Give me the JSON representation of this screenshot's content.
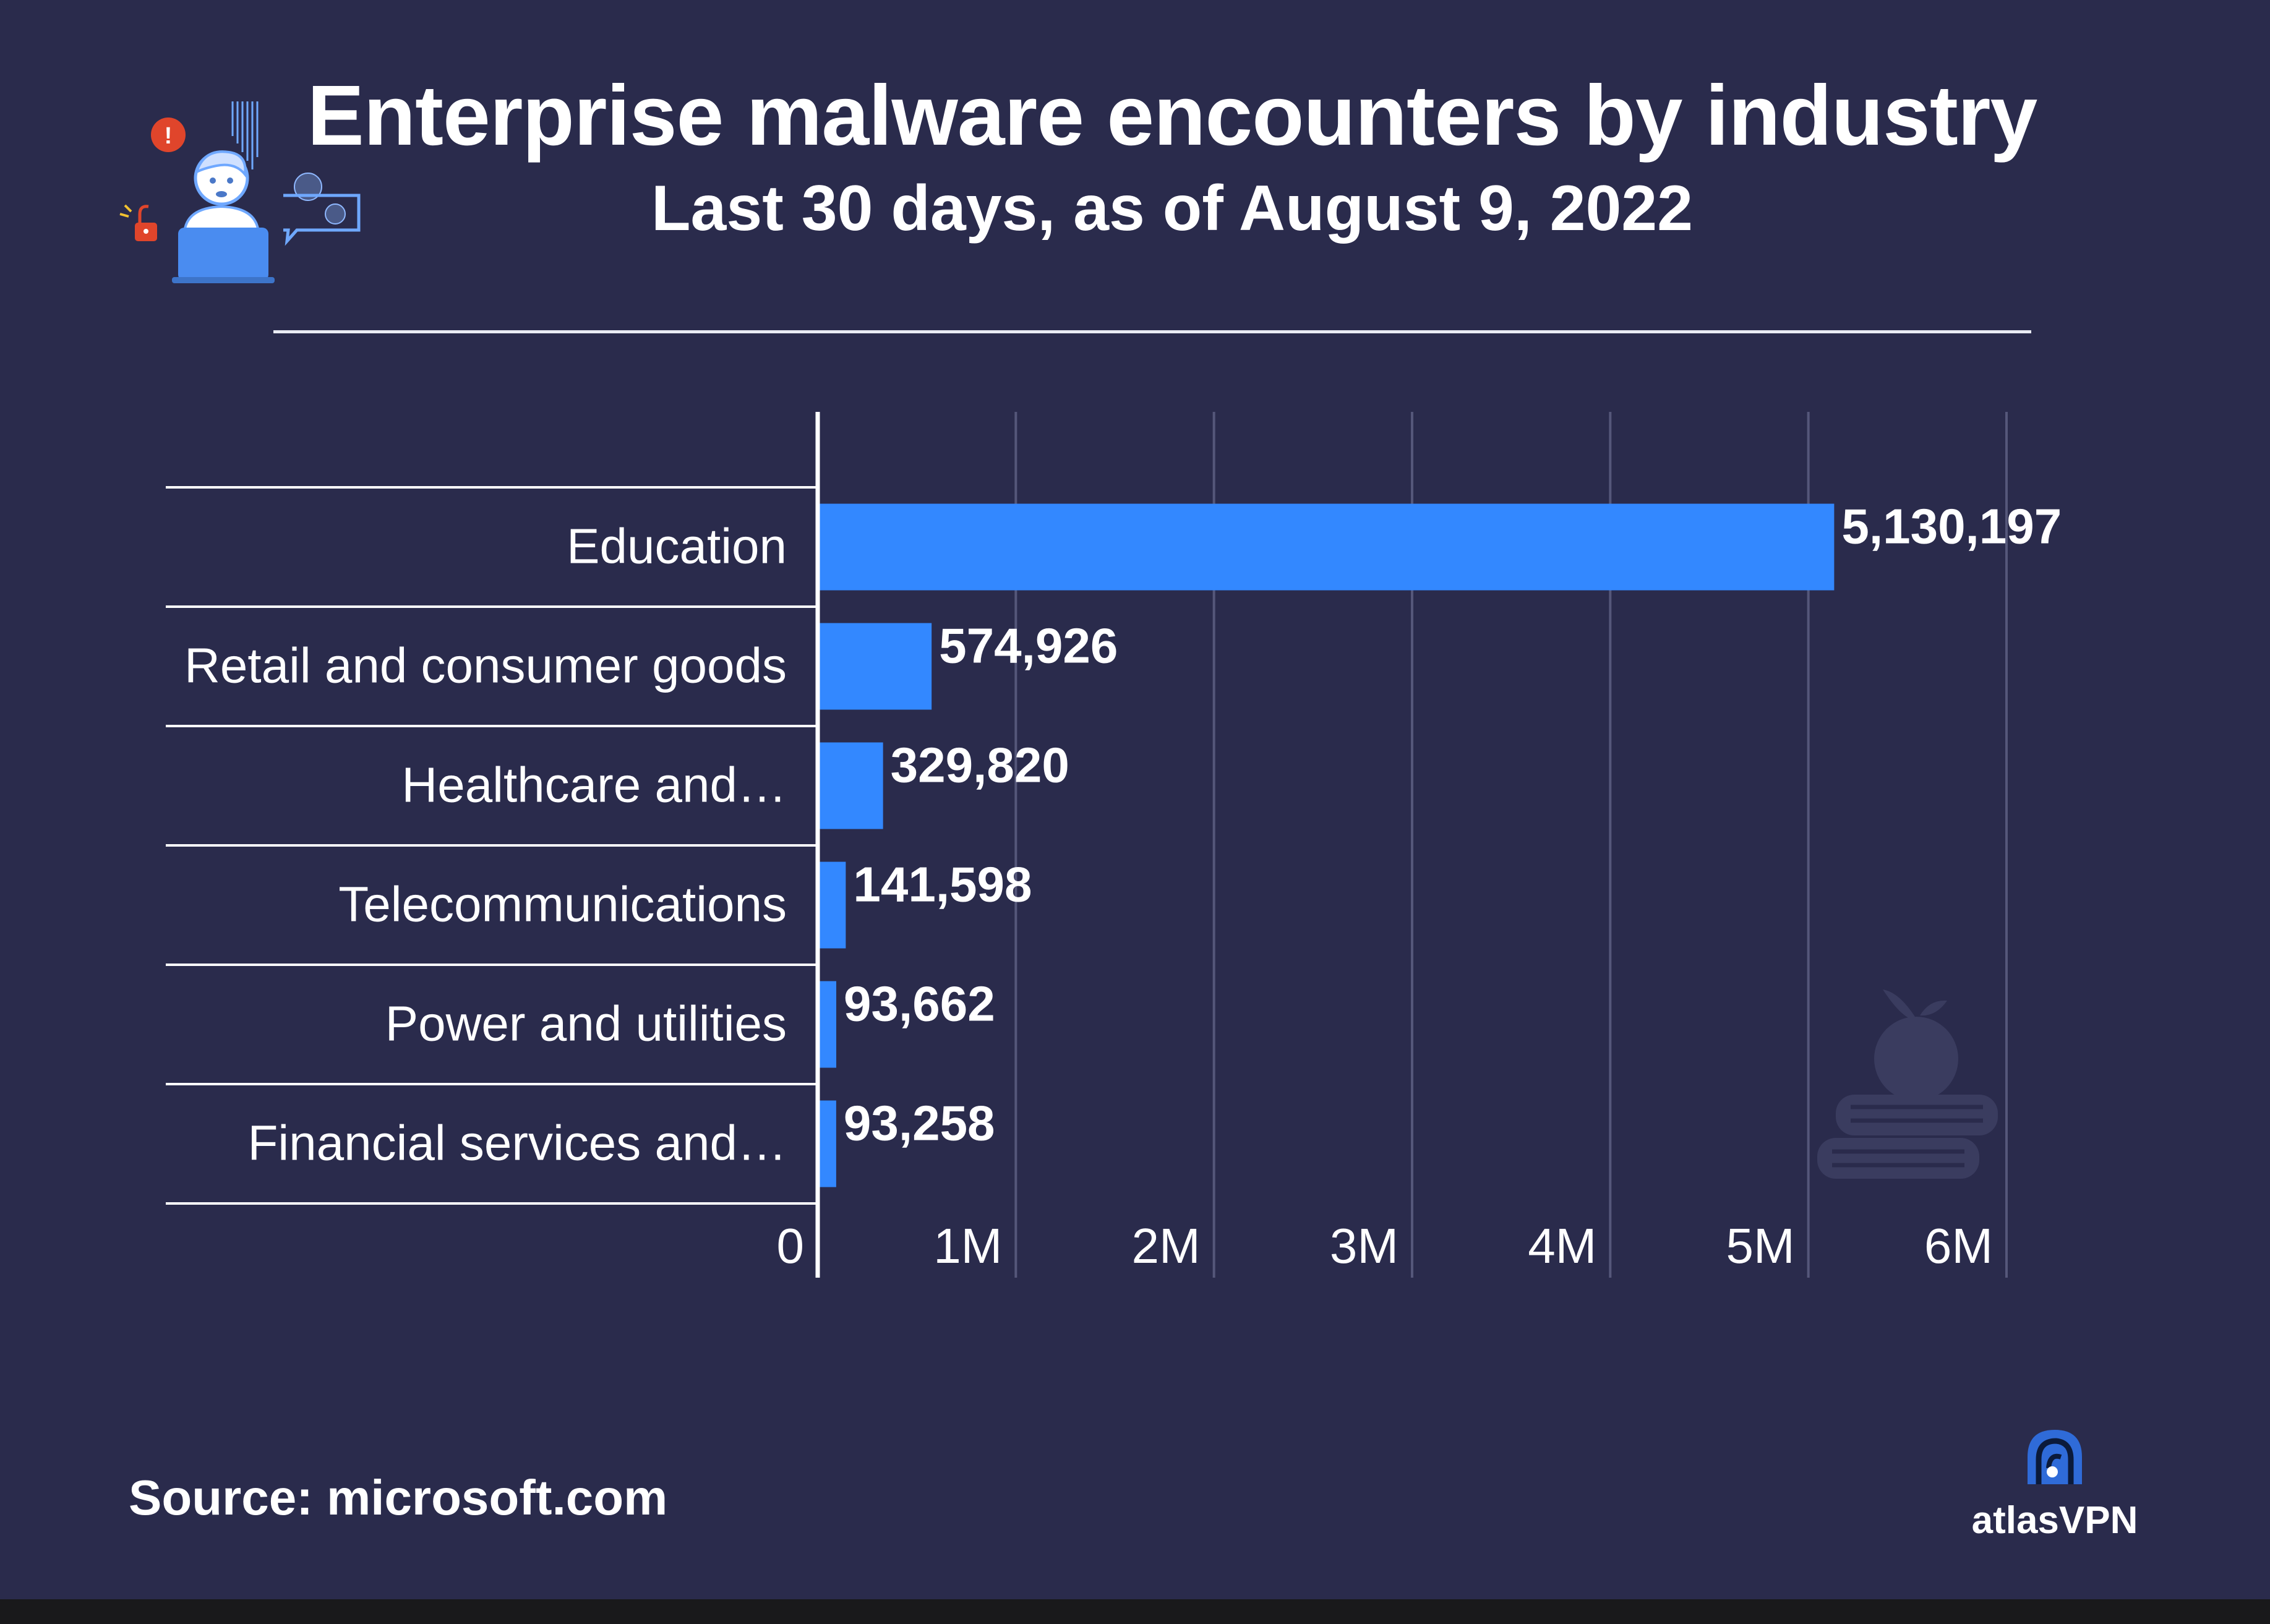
{
  "header": {
    "title": "Enterprise malware encounters by industry",
    "subtitle": "Last 30 days, as of August 9, 2022"
  },
  "footer": {
    "source": "Source: microsoft.com",
    "brand": "atlasVPN"
  },
  "icons": [
    "worried-user-laptop-icon",
    "malware-virus-icon",
    "alert-icon",
    "unlocked-padlock-icon",
    "apple-books-icon",
    "atlasvpn-logo-icon"
  ],
  "colors": {
    "background": "#2a2b4c",
    "bar": "#3388ff",
    "gridline": "#55577a",
    "text": "#ffffff",
    "watermark": "#3a3c5f"
  },
  "chart_data": {
    "type": "bar",
    "orientation": "horizontal",
    "title": "Enterprise malware encounters by industry",
    "subtitle": "Last 30 days, as of August 9, 2022",
    "categories": [
      "Education",
      "Retail and consumer goods",
      "Healthcare and…",
      "Telecommunications",
      "Power and utilities",
      "Financial services and…"
    ],
    "values": [
      5130197,
      574926,
      329820,
      141598,
      93662,
      93258
    ],
    "value_labels": [
      "5,130,197",
      "574,926",
      "329,820",
      "141,598",
      "93,662",
      "93,258"
    ],
    "xlim": [
      0,
      6000000
    ],
    "xticks": [
      0,
      1000000,
      2000000,
      3000000,
      4000000,
      5000000,
      6000000
    ],
    "xtick_labels": [
      "0",
      "1M",
      "2M",
      "3M",
      "4M",
      "5M",
      "6M"
    ],
    "xlabel": "",
    "ylabel": "",
    "grid": true
  }
}
